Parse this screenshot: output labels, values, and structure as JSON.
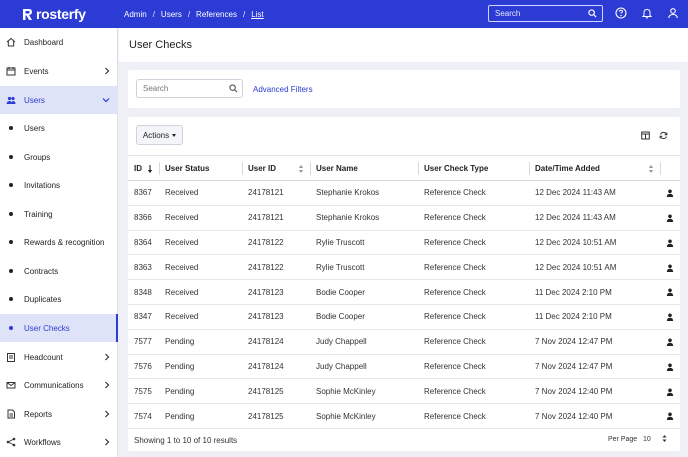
{
  "app": {
    "logo_text": "rosterfy",
    "brand_color": "#2b3bd4"
  },
  "breadcrumb": [
    "Admin",
    "Users",
    "References",
    "List"
  ],
  "topbar": {
    "search_placeholder": "Search",
    "icons": [
      "help-icon",
      "bell-icon",
      "user-icon"
    ]
  },
  "sidebar": {
    "items": [
      {
        "label": "Dashboard",
        "icon": "home-icon",
        "chevron": false
      },
      {
        "label": "Events",
        "icon": "calendar-icon",
        "chevron": "right"
      },
      {
        "label": "Users",
        "icon": "users-icon",
        "chevron": "down",
        "state": "open"
      },
      {
        "label": "Users",
        "sub": true
      },
      {
        "label": "Groups",
        "sub": true
      },
      {
        "label": "Invitations",
        "sub": true
      },
      {
        "label": "Training",
        "sub": true
      },
      {
        "label": "Rewards & recognition",
        "sub": true
      },
      {
        "label": "Contracts",
        "sub": true
      },
      {
        "label": "Duplicates",
        "sub": true
      },
      {
        "label": "User Checks",
        "sub": true,
        "state": "active"
      },
      {
        "label": "Headcount",
        "icon": "clipboard-icon",
        "chevron": "right"
      },
      {
        "label": "Communications",
        "icon": "mail-icon",
        "chevron": "right"
      },
      {
        "label": "Reports",
        "icon": "report-icon",
        "chevron": "right"
      },
      {
        "label": "Workflows",
        "icon": "workflow-icon",
        "chevron": "right"
      }
    ]
  },
  "page": {
    "title": "User Checks"
  },
  "filters": {
    "search_placeholder": "Search",
    "advanced_label": "Advanced Filters"
  },
  "table": {
    "actions_label": "Actions",
    "columns": [
      "ID",
      "User Status",
      "User ID",
      "User Name",
      "User Check Type",
      "Date/Time Added"
    ],
    "rows": [
      [
        "8367",
        "Received",
        "24178121",
        "Stephanie Krokos",
        "Reference Check",
        "12 Dec 2024 11:43 AM"
      ],
      [
        "8366",
        "Received",
        "24178121",
        "Stephanie Krokos",
        "Reference Check",
        "12 Dec 2024 11:43 AM"
      ],
      [
        "8364",
        "Received",
        "24178122",
        "Rylie Truscott",
        "Reference Check",
        "12 Dec 2024 10:51 AM"
      ],
      [
        "8363",
        "Received",
        "24178122",
        "Rylie Truscott",
        "Reference Check",
        "12 Dec 2024 10:51 AM"
      ],
      [
        "8348",
        "Received",
        "24178123",
        "Bodie Cooper",
        "Reference Check",
        "11 Dec 2024 2:10 PM"
      ],
      [
        "8347",
        "Received",
        "24178123",
        "Bodie Cooper",
        "Reference Check",
        "11 Dec 2024 2:10 PM"
      ],
      [
        "7577",
        "Pending",
        "24178124",
        "Judy Chappell",
        "Reference Check",
        "7 Nov 2024 12:47 PM"
      ],
      [
        "7576",
        "Pending",
        "24178124",
        "Judy Chappell",
        "Reference Check",
        "7 Nov 2024 12:47 PM"
      ],
      [
        "7575",
        "Pending",
        "24178125",
        "Sophie McKinley",
        "Reference Check",
        "7 Nov 2024 12:40 PM"
      ],
      [
        "7574",
        "Pending",
        "24178125",
        "Sophie McKinley",
        "Reference Check",
        "7 Nov 2024 12:40 PM"
      ]
    ],
    "footer_text": "Showing 1 to 10 of 10 results",
    "per_page_label": "Per Page",
    "per_page_value": "10"
  }
}
